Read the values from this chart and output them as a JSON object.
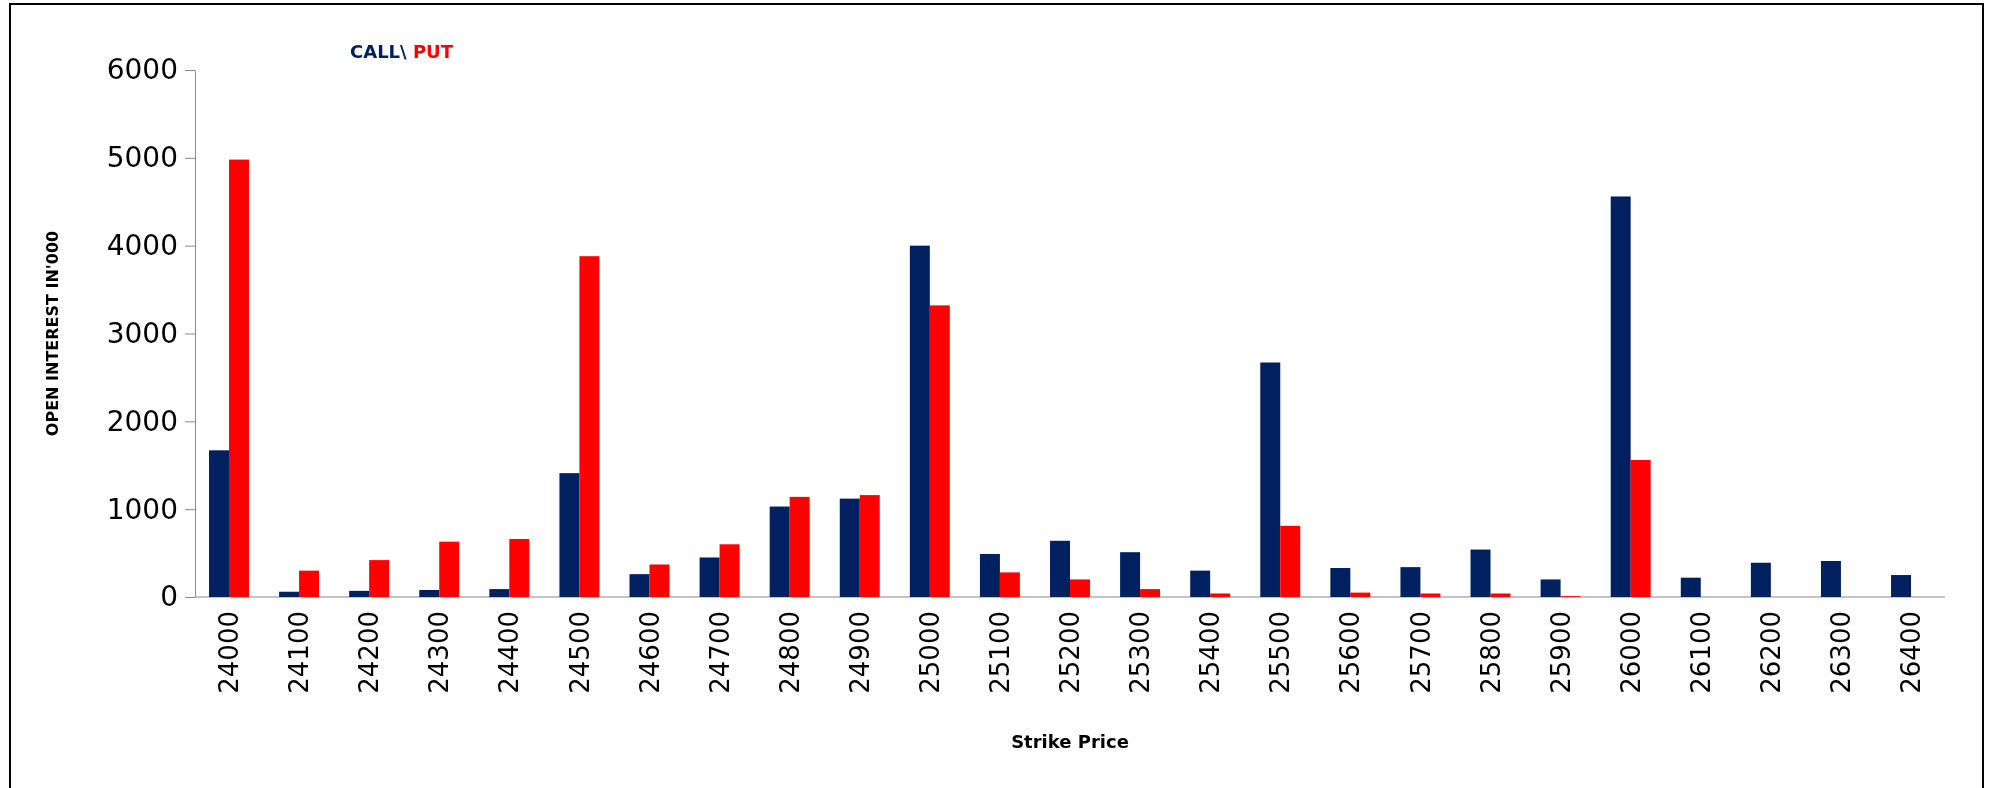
{
  "chart_data": {
    "type": "bar",
    "xlabel": "Strike Price",
    "ylabel": "OPEN INTEREST IN'000",
    "categories": [
      "24000",
      "24100",
      "24200",
      "24300",
      "24400",
      "24500",
      "24600",
      "24700",
      "24800",
      "24900",
      "25000",
      "25100",
      "25200",
      "25300",
      "25400",
      "25500",
      "25600",
      "25700",
      "25800",
      "25900",
      "26000",
      "26100",
      "26200",
      "26300",
      "26400"
    ],
    "series": [
      {
        "name": "CALL\\",
        "color": "#002060",
        "values": [
          1670,
          60,
          70,
          80,
          90,
          1410,
          260,
          450,
          1030,
          1120,
          4000,
          490,
          640,
          510,
          300,
          2670,
          330,
          340,
          540,
          200,
          4560,
          220,
          390,
          410,
          250
        ]
      },
      {
        "name": "PUT",
        "color": "#ff0000",
        "values": [
          4980,
          300,
          420,
          630,
          660,
          3880,
          370,
          600,
          1140,
          1160,
          3320,
          280,
          200,
          90,
          40,
          810,
          50,
          40,
          40,
          10,
          1560,
          0,
          0,
          0,
          0
        ]
      }
    ],
    "ylim": [
      0,
      6000
    ],
    "yticks": [
      0,
      1000,
      2000,
      3000,
      4000,
      5000,
      6000
    ],
    "grid": false,
    "legend": "top left"
  }
}
